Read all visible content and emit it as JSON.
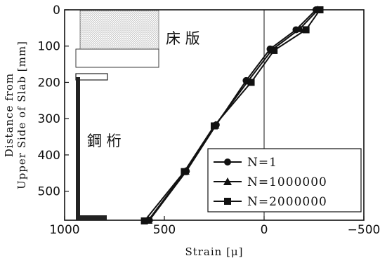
{
  "chart_data": {
    "type": "line",
    "xlabel": "Strain [μ]",
    "ylabel": [
      "Distance from",
      "Upper Side of Slab [mm]"
    ],
    "xlim": [
      1000,
      -500
    ],
    "ylim": [
      580,
      0
    ],
    "x_ticks": [
      1000,
      500,
      0,
      -500
    ],
    "x_tick_labels": [
      "1000",
      "500",
      "0",
      "−500"
    ],
    "y_ticks": [
      0,
      100,
      200,
      300,
      400,
      500
    ],
    "y_tick_labels": [
      "0",
      "100",
      "200",
      "300",
      "400",
      "500"
    ],
    "grid": false,
    "legend_position": "bottom-right",
    "series": [
      {
        "name": "N=1",
        "marker": "circle",
        "points": [
          [
            -260,
            0
          ],
          [
            -160,
            55
          ],
          [
            -30,
            108
          ],
          [
            90,
            195
          ],
          [
            240,
            317
          ],
          [
            390,
            445
          ],
          [
            575,
            580
          ]
        ]
      },
      {
        "name": "N=1000000",
        "marker": "triangle",
        "points": [
          [
            -270,
            0
          ],
          [
            -180,
            52
          ],
          [
            -40,
            110
          ],
          [
            80,
            196
          ],
          [
            245,
            318
          ],
          [
            395,
            445
          ],
          [
            580,
            580
          ]
        ]
      },
      {
        "name": "N=2000000",
        "marker": "square",
        "points": [
          [
            -280,
            0
          ],
          [
            -210,
            55
          ],
          [
            -50,
            112
          ],
          [
            65,
            200
          ],
          [
            250,
            320
          ],
          [
            400,
            446
          ],
          [
            600,
            582
          ]
        ]
      }
    ],
    "annotations": [
      {
        "id": "slab",
        "text": "床 版"
      },
      {
        "id": "girder",
        "text": "鋼 桁"
      }
    ]
  }
}
